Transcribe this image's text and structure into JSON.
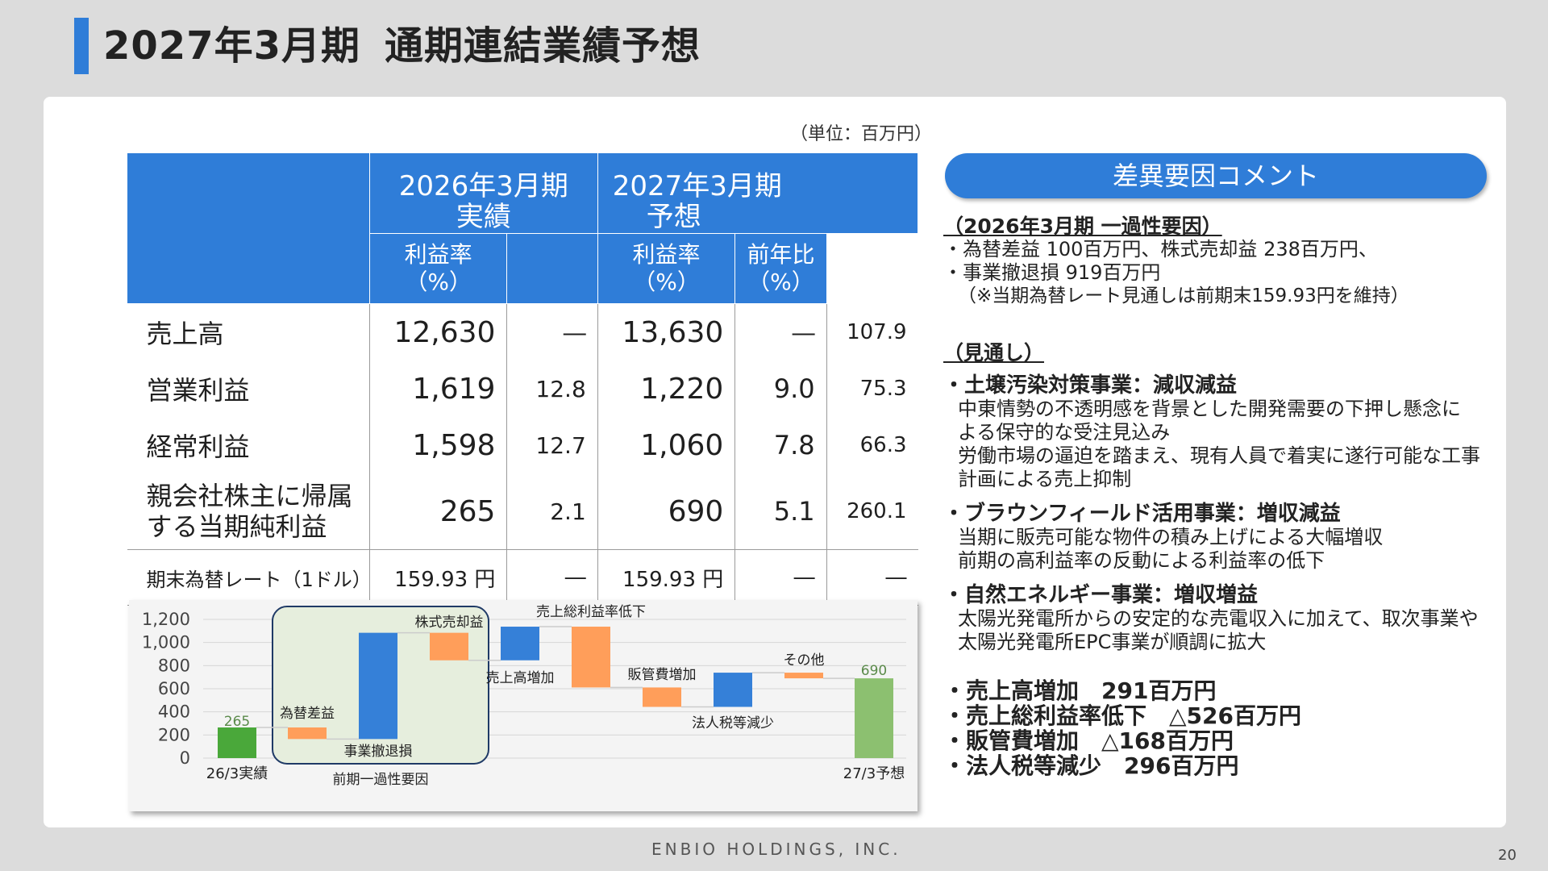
{
  "title": {
    "period": "2027年3月期",
    "subject": "通期連結業績予想"
  },
  "unit": "（単位：百万円）",
  "table": {
    "col_fy2026": "2026年3月期",
    "col_fy2026_sub": "実績",
    "col_fy2027": "2027年3月期",
    "col_fy2027_sub": "予想",
    "margin_label_1": "利益率",
    "margin_label_2": "（%）",
    "yoy_label_1": "前年比",
    "yoy_label_2": "（%）",
    "rows": [
      {
        "label": "売上高",
        "a": "12,630",
        "am": "―",
        "f": "13,630",
        "fm": "―",
        "yoy": "107.9"
      },
      {
        "label": "営業利益",
        "a": "1,619",
        "am": "12.8",
        "f": "1,220",
        "fm": "9.0",
        "yoy": "75.3"
      },
      {
        "label": "経常利益",
        "a": "1,598",
        "am": "12.7",
        "f": "1,060",
        "fm": "7.8",
        "yoy": "66.3"
      },
      {
        "label1": "親会社株主に帰属",
        "label2": "する当期純利益",
        "a": "265",
        "am": "2.1",
        "f": "690",
        "fm": "5.1",
        "yoy": "260.1"
      },
      {
        "label": "期末為替レート（1ドル）",
        "a": "159.93 円",
        "am": "―",
        "f": "159.93 円",
        "fm": "―",
        "yoy": "―"
      }
    ]
  },
  "chart_data": {
    "type": "bar",
    "subtype": "waterfall",
    "ylim": [
      0,
      1200
    ],
    "yticks": [
      "1,200",
      "1,000",
      "800",
      "600",
      "400",
      "200",
      "0"
    ],
    "steps": [
      {
        "label": "26/3実績",
        "kind": "total",
        "start": 0,
        "end": 265,
        "color": "#4aa83a"
      },
      {
        "label": "為替差益",
        "kind": "increase",
        "start": 265,
        "end": 165,
        "color": "#ff9e5a"
      },
      {
        "label": "事業撤退損",
        "kind": "increase",
        "start": 165,
        "end": 1084,
        "color": "#3580d8"
      },
      {
        "label": "株式売却益",
        "kind": "increase",
        "start": 1084,
        "end": 846,
        "color": "#ff9e5a"
      },
      {
        "label": "売上高増加",
        "kind": "increase",
        "start": 846,
        "end": 1137,
        "color": "#3580d8"
      },
      {
        "label": "売上総利益率低下",
        "kind": "decrease",
        "start": 1137,
        "end": 611,
        "color": "#ff9e5a"
      },
      {
        "label": "販管費増加",
        "kind": "decrease",
        "start": 611,
        "end": 443,
        "color": "#ff9e5a"
      },
      {
        "label": "法人税等減少",
        "kind": "increase",
        "start": 443,
        "end": 739,
        "color": "#3580d8"
      },
      {
        "label": "その他",
        "kind": "decrease",
        "start": 739,
        "end": 690,
        "color": "#ff9e5a"
      },
      {
        "label": "27/3予想",
        "kind": "total",
        "start": 0,
        "end": 690,
        "color": "#8cc070"
      }
    ],
    "value_labels": [
      "265",
      "690"
    ],
    "group_label": "前期一過性要因"
  },
  "comment": {
    "pill": "差異要因コメント",
    "sec1_title": "（2026年3月期 一過性要因）",
    "sec1_lines": [
      "・為替差益 100百万円、株式売却益 238百万円、",
      "・事業撤退損 919百万円",
      "（※当期為替レート見通しは前期末159.93円を維持）"
    ],
    "sec2_title": "（見通し）",
    "items": [
      {
        "head": "・土壌汚染対策事業：減収減益",
        "lines": [
          "中東情勢の不透明感を背景とした開発需要の下押し懸念に",
          "よる保守的な受注見込み",
          "労働市場の逼迫を踏まえ、現有人員で着実に遂行可能な工事",
          "計画による売上抑制"
        ]
      },
      {
        "head": "・ブラウンフィールド活用事業：増収減益",
        "lines": [
          "当期に販売可能な物件の積み上げによる大幅増収",
          "前期の高利益率の反動による利益率の低下"
        ]
      },
      {
        "head": "・自然エネルギー事業：増収増益",
        "lines": [
          "太陽光発電所からの安定的な売電収入に加えて、取次事業や",
          "太陽光発電所EPC事業が順調に拡大"
        ]
      }
    ],
    "summary": [
      "・売上高増加　291百万円",
      "・売上総利益率低下　△526百万円",
      "・販管費増加　△168百万円",
      "・法人税等減少　296百万円"
    ]
  },
  "footer": "ENBIO HOLDINGS, INC.",
  "page_number": "20"
}
